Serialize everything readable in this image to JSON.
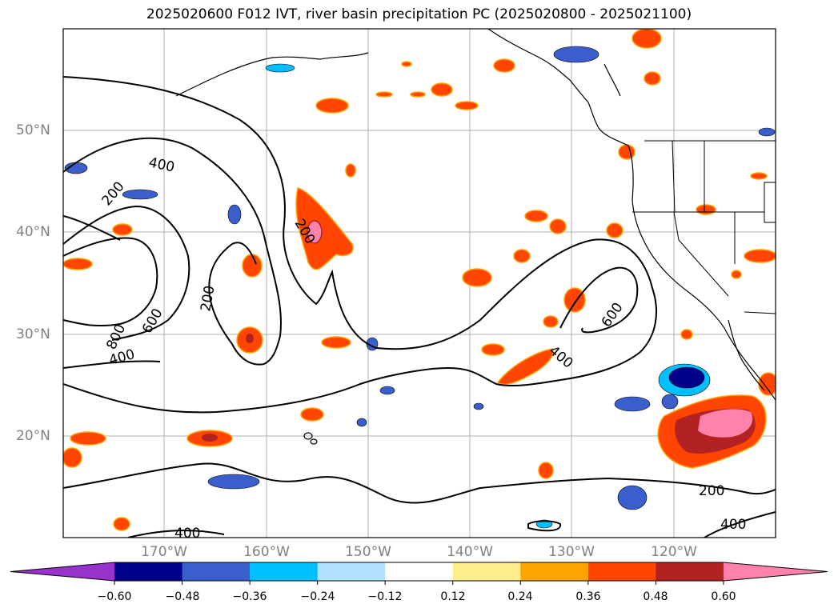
{
  "title": "2025020600 F012 IVT, river basin precipitation PC (2025020800 - 2025021100)",
  "map": {
    "lon_range": [
      -180,
      -110
    ],
    "lat_range": [
      10,
      60
    ],
    "lat_labels": [
      "50°N",
      "40°N",
      "30°N",
      "20°N"
    ],
    "lon_labels": [
      "170°W",
      "160°W",
      "150°W",
      "140°W",
      "130°W",
      "120°W"
    ],
    "grid": true,
    "contour_labels": [
      "400",
      "200",
      "200",
      "200",
      "600",
      "800",
      "400",
      "600",
      "400",
      "200",
      "400",
      "400"
    ]
  },
  "colorbar": {
    "extend": "both",
    "ticks": [
      "−0.60",
      "−0.48",
      "−0.36",
      "−0.24",
      "−0.12",
      "0.12",
      "0.24",
      "0.36",
      "0.48",
      "0.60"
    ],
    "colors": [
      "#9932cc",
      "#00008b",
      "#3a5fcd",
      "#00bfff",
      "#b0e2ff",
      "#ffffff",
      "#ffec8b",
      "#ffa500",
      "#ff4500",
      "#b22222",
      "#ff82ab"
    ]
  }
}
